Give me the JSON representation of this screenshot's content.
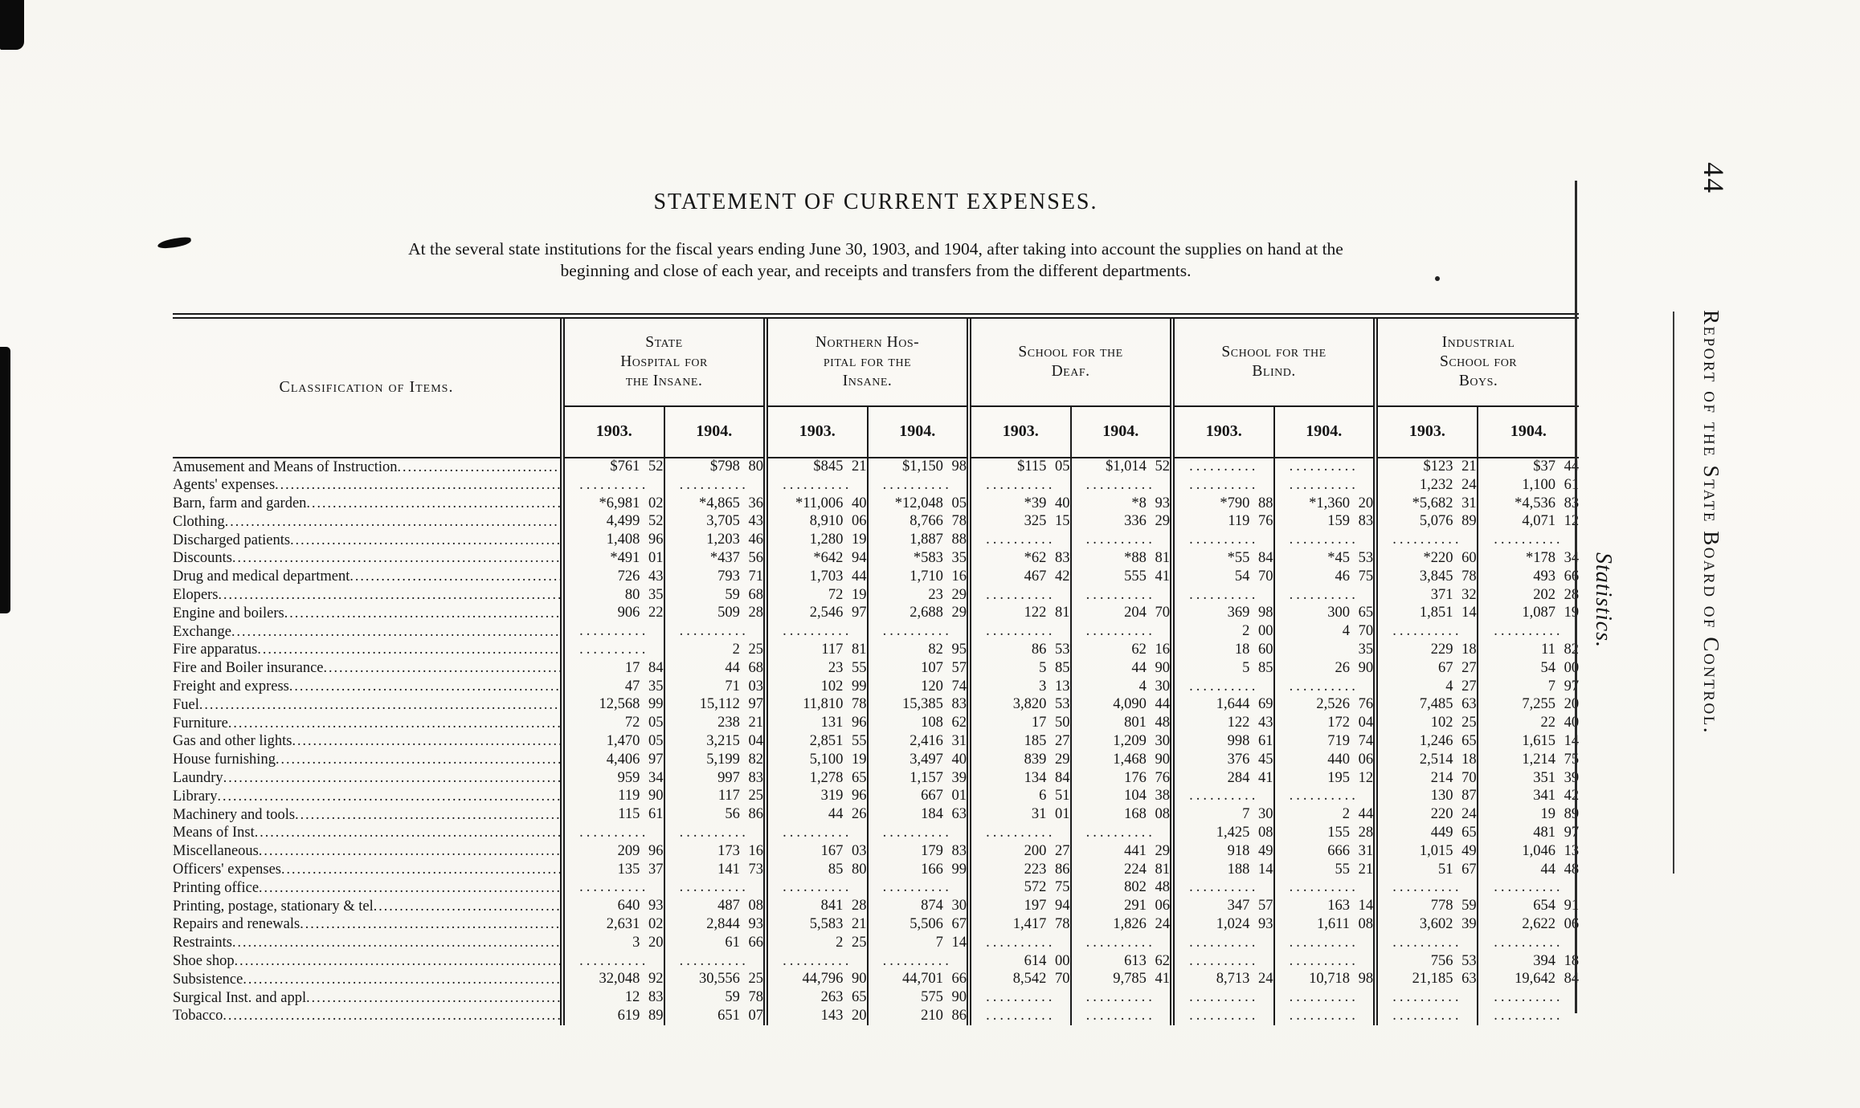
{
  "page": {
    "title": "STATEMENT OF CURRENT EXPENSES.",
    "subtitle_line1": "At the several state institutions for the fiscal years ending June 30, 1903, and 1904, after taking into account the supplies on hand at the",
    "subtitle_line2": "beginning and close of each year, and receipts and transfers from the different departments."
  },
  "margin": {
    "page_number": "44",
    "running_title": "Report of the State Board of Control.",
    "section_label": "Statistics."
  },
  "table": {
    "items_header": "Classification of Items.",
    "groups": [
      {
        "name": "State\nHospital for\nthe Insane.",
        "years": [
          "1903.",
          "1904."
        ]
      },
      {
        "name": "Northern Hos-\npital for the\nInsane.",
        "years": [
          "1903.",
          "1904."
        ]
      },
      {
        "name": "School for the\nDeaf.",
        "years": [
          "1903.",
          "1904."
        ]
      },
      {
        "name": "School for the\nBlind.",
        "years": [
          "1903.",
          "1904."
        ]
      },
      {
        "name": "Industrial\nSchool for\nBoys.",
        "years": [
          "1903.",
          "1904."
        ]
      }
    ],
    "rows": [
      {
        "label": "Amusement and Means of Instruction",
        "values": [
          "$761 52",
          "$798 80",
          "$845 21",
          "$1,150 98",
          "$115 05",
          "$1,014 52",
          "..........",
          "..........",
          "$123 21",
          "$37 44"
        ]
      },
      {
        "label": "Agents' expenses",
        "values": [
          "..........",
          "..........",
          "..........",
          "..........",
          "..........",
          "..........",
          "..........",
          "..........",
          "1,232 24",
          "1,100 61"
        ]
      },
      {
        "label": "Barn, farm and garden",
        "values": [
          "*6,981 02",
          "*4,865 36",
          "*11,006 40",
          "*12,048 05",
          "*39 40",
          "*8 93",
          "*790 88",
          "*1,360 20",
          "*5,682 31",
          "*4,536 83"
        ]
      },
      {
        "label": "Clothing",
        "values": [
          "4,499 52",
          "3,705 43",
          "8,910 06",
          "8,766 78",
          "325 15",
          "336 29",
          "119 76",
          "159 83",
          "5,076 89",
          "4,071 12"
        ]
      },
      {
        "label": "Discharged patients",
        "values": [
          "1,408 96",
          "1,203 46",
          "1,280 19",
          "1,887 88",
          "..........",
          "..........",
          "..........",
          "..........",
          "..........",
          ".........."
        ]
      },
      {
        "label": "Discounts",
        "values": [
          "*491 01",
          "*437 56",
          "*642 94",
          "*583 35",
          "*62 83",
          "*88 81",
          "*55 84",
          "*45 53",
          "*220 60",
          "*178 34"
        ]
      },
      {
        "label": "Drug and medical department",
        "values": [
          "726 43",
          "793 71",
          "1,703 44",
          "1,710 16",
          "467 42",
          "555 41",
          "54 70",
          "46 75",
          "3,845 78",
          "493 66"
        ]
      },
      {
        "label": "Elopers",
        "values": [
          "80 35",
          "59 68",
          "72 19",
          "23 29",
          "..........",
          "..........",
          "..........",
          "..........",
          "371 32",
          "202 28"
        ]
      },
      {
        "label": "Engine and boilers",
        "values": [
          "906 22",
          "509 28",
          "2,546 97",
          "2,688 29",
          "122 81",
          "204 70",
          "369 98",
          "300 65",
          "1,851 14",
          "1,087 19"
        ]
      },
      {
        "label": "Exchange",
        "values": [
          "..........",
          "..........",
          "..........",
          "..........",
          "..........",
          "..........",
          "2 00",
          "4 70",
          "..........",
          ".........."
        ]
      },
      {
        "label": "Fire apparatus",
        "values": [
          "..........",
          "2 25",
          "117 81",
          "82 95",
          "86 53",
          "62 16",
          "18 60",
          "35",
          "229 18",
          "11 82"
        ]
      },
      {
        "label": "Fire and Boiler insurance",
        "values": [
          "17 84",
          "44 68",
          "23 55",
          "107 57",
          "5 85",
          "44 90",
          "5 85",
          "26 90",
          "67 27",
          "54 00"
        ]
      },
      {
        "label": "Freight and express",
        "values": [
          "47 35",
          "71 03",
          "102 99",
          "120 74",
          "3 13",
          "4 30",
          "..........",
          "..........",
          "4 27",
          "7 97"
        ]
      },
      {
        "label": "Fuel",
        "values": [
          "12,568 99",
          "15,112 97",
          "11,810 78",
          "15,385 83",
          "3,820 53",
          "4,090 44",
          "1,644 69",
          "2,526 76",
          "7,485 63",
          "7,255 20"
        ]
      },
      {
        "label": "Furniture",
        "values": [
          "72 05",
          "238 21",
          "131 96",
          "108 62",
          "17 50",
          "801 48",
          "122 43",
          "172 04",
          "102 25",
          "22 40"
        ]
      },
      {
        "label": "Gas and other lights",
        "values": [
          "1,470 05",
          "3,215 04",
          "2,851 55",
          "2,416 31",
          "185 27",
          "1,209 30",
          "998 61",
          "719 74",
          "1,246 65",
          "1,615 14"
        ]
      },
      {
        "label": "House furnishing",
        "values": [
          "4,406 97",
          "5,199 82",
          "5,100 19",
          "3,497 40",
          "839 29",
          "1,468 90",
          "376 45",
          "440 06",
          "2,514 18",
          "1,214 75"
        ]
      },
      {
        "label": "Laundry",
        "values": [
          "959 34",
          "997 83",
          "1,278 65",
          "1,157 39",
          "134 84",
          "176 76",
          "284 41",
          "195 12",
          "214 70",
          "351 39"
        ]
      },
      {
        "label": "Library",
        "values": [
          "119 90",
          "117 25",
          "319 96",
          "667 01",
          "6 51",
          "104 38",
          "..........",
          "..........",
          "130 87",
          "341 42"
        ]
      },
      {
        "label": "Machinery and tools",
        "values": [
          "115 61",
          "56 86",
          "44 26",
          "184 63",
          "31 01",
          "168 08",
          "7 30",
          "2 44",
          "220 24",
          "19 89"
        ]
      },
      {
        "label": "Means of Inst",
        "values": [
          "..........",
          "..........",
          "..........",
          "..........",
          "..........",
          "..........",
          "1,425 08",
          "155 28",
          "449 65",
          "481 97"
        ]
      },
      {
        "label": "Miscellaneous",
        "values": [
          "209 96",
          "173 16",
          "167 03",
          "179 83",
          "200 27",
          "441 29",
          "918 49",
          "666 31",
          "1,015 49",
          "1,046 13"
        ]
      },
      {
        "label": "Officers' expenses",
        "values": [
          "135 37",
          "141 73",
          "85 80",
          "166 99",
          "223 86",
          "224 81",
          "188 14",
          "55 21",
          "51 67",
          "44 48"
        ]
      },
      {
        "label": "Printing office",
        "values": [
          "..........",
          "..........",
          "..........",
          "..........",
          "572 75",
          "802 48",
          "..........",
          "..........",
          "..........",
          ".........."
        ]
      },
      {
        "label": "Printing, postage, stationary & tel",
        "values": [
          "640 93",
          "487 08",
          "841 28",
          "874 30",
          "197 94",
          "291 06",
          "347 57",
          "163 14",
          "778 59",
          "654 91"
        ]
      },
      {
        "label": "Repairs and renewals",
        "values": [
          "2,631 02",
          "2,844 93",
          "5,583 21",
          "5,506 67",
          "1,417 78",
          "1,826 24",
          "1,024 93",
          "1,611 08",
          "3,602 39",
          "2,622 06"
        ]
      },
      {
        "label": "Restraints",
        "values": [
          "3 20",
          "61 66",
          "2 25",
          "7 14",
          "..........",
          "..........",
          "..........",
          "..........",
          "..........",
          ".........."
        ]
      },
      {
        "label": "Shoe shop",
        "values": [
          "..........",
          "..........",
          "..........",
          "..........",
          "614 00",
          "613 62",
          "..........",
          "..........",
          "756 53",
          "394 18"
        ]
      },
      {
        "label": "Subsistence",
        "values": [
          "32,048 92",
          "30,556 25",
          "44,796 90",
          "44,701 66",
          "8,542 70",
          "9,785 41",
          "8,713 24",
          "10,718 98",
          "21,185 63",
          "19,642 84"
        ]
      },
      {
        "label": "Surgical Inst. and appl",
        "values": [
          "12 83",
          "59 78",
          "263 65",
          "575 90",
          "..........",
          "..........",
          "..........",
          "..........",
          "..........",
          ".........."
        ]
      },
      {
        "label": "Tobacco",
        "values": [
          "619 89",
          "651 07",
          "143 20",
          "210 86",
          "..........",
          "..........",
          "..........",
          "..........",
          "..........",
          ".........."
        ]
      }
    ]
  }
}
